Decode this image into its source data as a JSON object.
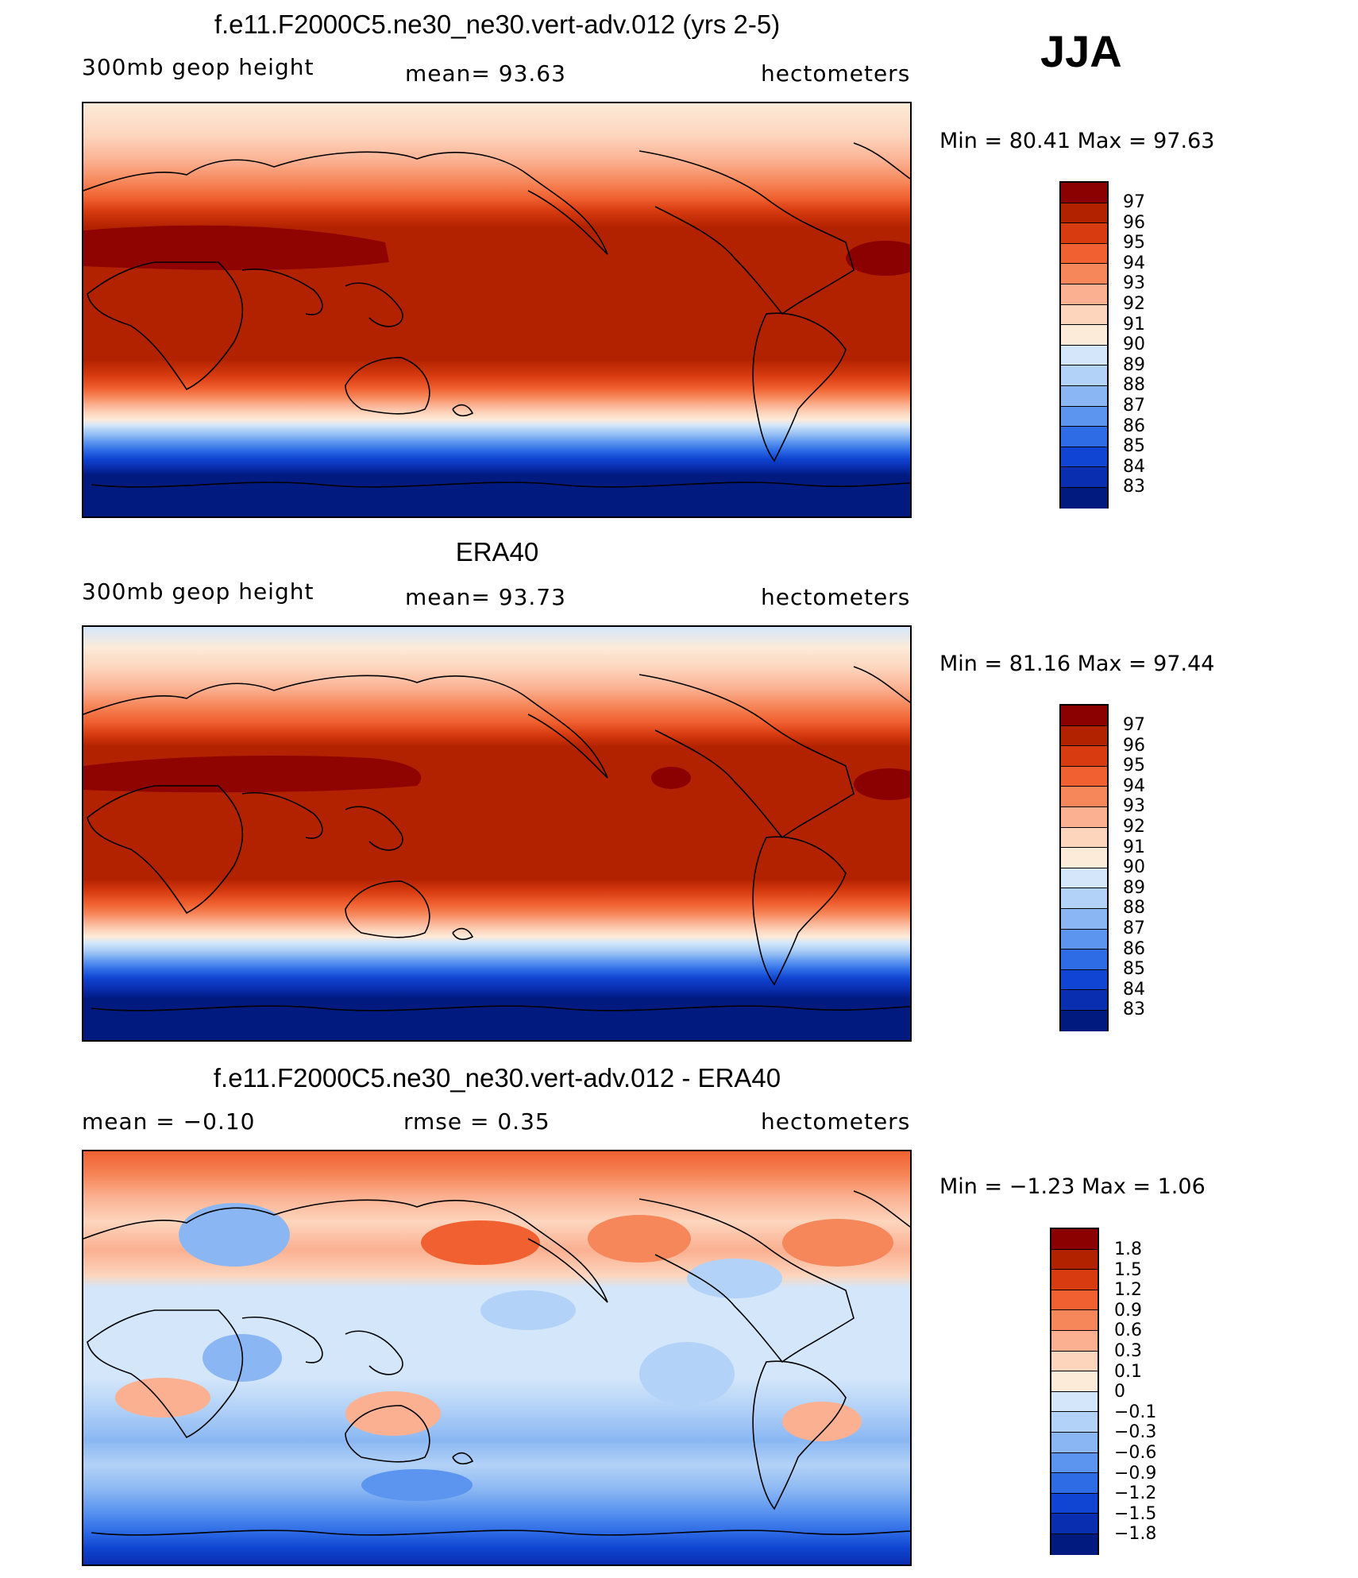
{
  "season": "JJA",
  "chart_data": [
    {
      "type": "heatmap",
      "title": "f.e11.F2000C5.ne30_ne30.vert-adv.012 (yrs 2-5)",
      "variable": "300mb geop height",
      "stat1": "mean=   93.63",
      "stat2": "",
      "units": "hectometers",
      "minmax": "Min =   80.41  Max =   97.63",
      "min": 80.41,
      "max": 97.63,
      "mean": 93.63,
      "levels": [
        "97",
        "96",
        "95",
        "94",
        "93",
        "92",
        "91",
        "90",
        "89",
        "88",
        "87",
        "86",
        "85",
        "84",
        "83"
      ],
      "colors": [
        "#8b0000",
        "#b22200",
        "#d83b10",
        "#f06030",
        "#f6875a",
        "#fbb091",
        "#fdd5bd",
        "#fdebd9",
        "#d3e6fa",
        "#b3d2f7",
        "#8ab7f3",
        "#5b95ef",
        "#2e6ce6",
        "#0f45d2",
        "#0a2eb0",
        "#001a80"
      ]
    },
    {
      "type": "heatmap",
      "title": "ERA40",
      "variable": "300mb geop height",
      "stat1": "mean=   93.73",
      "stat2": "",
      "units": "hectometers",
      "minmax": "Min =   81.16  Max =   97.44",
      "min": 81.16,
      "max": 97.44,
      "mean": 93.73,
      "levels": [
        "97",
        "96",
        "95",
        "94",
        "93",
        "92",
        "91",
        "90",
        "89",
        "88",
        "87",
        "86",
        "85",
        "84",
        "83"
      ],
      "colors": [
        "#8b0000",
        "#b22200",
        "#d83b10",
        "#f06030",
        "#f6875a",
        "#fbb091",
        "#fdd5bd",
        "#fdebd9",
        "#d3e6fa",
        "#b3d2f7",
        "#8ab7f3",
        "#5b95ef",
        "#2e6ce6",
        "#0f45d2",
        "#0a2eb0",
        "#001a80"
      ]
    },
    {
      "type": "heatmap",
      "title": "f.e11.F2000C5.ne30_ne30.vert-adv.012 - ERA40",
      "variable": "",
      "stat1": "mean =   −0.10",
      "stat2": "rmse =    0.35",
      "units": "hectometers",
      "minmax": "Min =   −1.23  Max =    1.06",
      "min": -1.23,
      "max": 1.06,
      "mean": -0.1,
      "rmse": 0.35,
      "levels": [
        "1.8",
        "1.5",
        "1.2",
        "0.9",
        "0.6",
        "0.3",
        "0.1",
        "0",
        "−0.1",
        "−0.3",
        "−0.6",
        "−0.9",
        "−1.2",
        "−1.5",
        "−1.8"
      ],
      "colors": [
        "#8b0000",
        "#b22200",
        "#d83b10",
        "#f06030",
        "#f6875a",
        "#fbb091",
        "#fdd5bd",
        "#fdebd9",
        "#d3e6fa",
        "#b3d2f7",
        "#8ab7f3",
        "#5b95ef",
        "#2e6ce6",
        "#0f45d2",
        "#0a2eb0",
        "#001a80"
      ]
    }
  ]
}
